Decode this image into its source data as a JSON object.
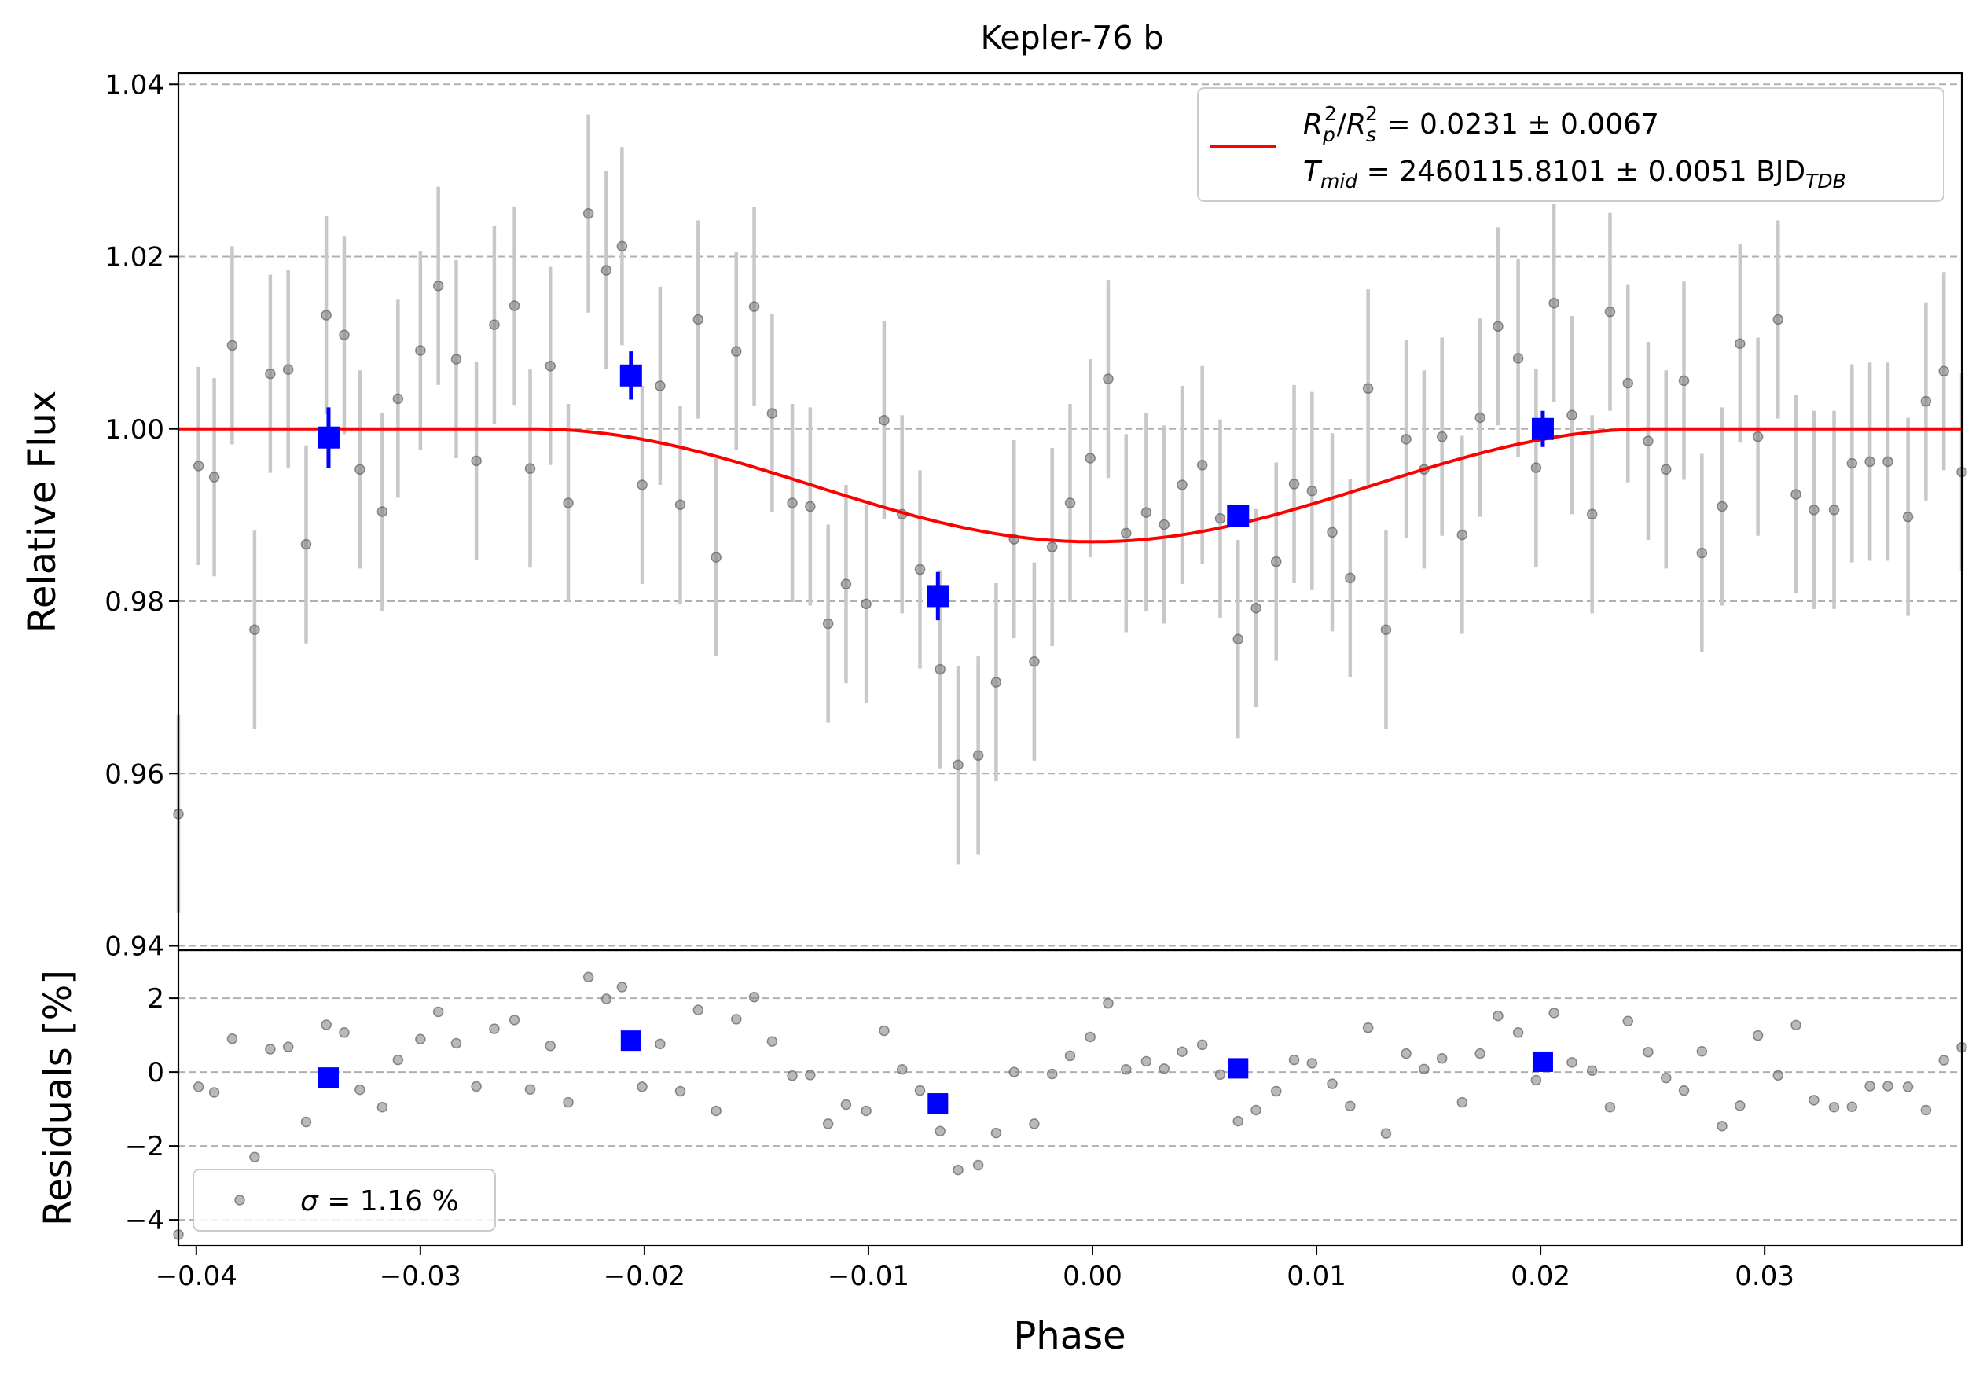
{
  "chart_data": [
    {
      "type": "scatter",
      "panel": "main",
      "title": "Kepler-76 b",
      "xlabel": "",
      "ylabel": "Relative Flux",
      "xlim": [
        -0.0408,
        0.0388
      ],
      "ylim": [
        0.9395,
        1.0413
      ],
      "yticks": [
        0.94,
        0.96,
        0.98,
        1.0,
        1.02,
        1.04
      ],
      "ytick_labels": [
        "0.94",
        "0.96",
        "0.98",
        "1.00",
        "1.02",
        "1.04"
      ],
      "grid": "horizontal dashed",
      "legend_position": "top-right",
      "legend": {
        "line1": {
          "sym1": "R",
          "sub1": "p",
          "sup1": "2",
          "sep": "/",
          "sym2": "R",
          "sub2": "s",
          "sup2": "2",
          "value": " = 0.0231 ± 0.0067"
        },
        "line2": {
          "sym": "T",
          "sub": "mid",
          "value": " = 2460115.8101 ± 0.0051 BJD",
          "unit_sub": "TDB"
        }
      },
      "colors": {
        "data": "#808080",
        "errorbar": "#c8c8c8",
        "binned": "#0000ff",
        "model": "#ff0000",
        "grid": "#b0b0b0"
      },
      "series": [
        {
          "role": "data",
          "x": [
            -0.0408,
            -0.0399,
            -0.0392,
            -0.0384,
            -0.0374,
            -0.0367,
            -0.0359,
            -0.0351,
            -0.0342,
            -0.0334,
            -0.0327,
            -0.0317,
            -0.031,
            -0.03,
            -0.0292,
            -0.0284,
            -0.0275,
            -0.0267,
            -0.0258,
            -0.0251,
            -0.0242,
            -0.0234,
            -0.0225,
            -0.0217,
            -0.021,
            -0.0201,
            -0.0193,
            -0.0184,
            -0.0176,
            -0.0168,
            -0.0159,
            -0.0151,
            -0.0143,
            -0.0134,
            -0.0126,
            -0.0118,
            -0.011,
            -0.0101,
            -0.0093,
            -0.0085,
            -0.0077,
            -0.0068,
            -0.006,
            -0.0051,
            -0.0043,
            -0.0035,
            -0.0026,
            -0.0018,
            -0.001,
            -0.0001,
            0.0007,
            0.0015,
            0.0024,
            0.0032,
            0.004,
            0.0049,
            0.0057,
            0.0065,
            0.0073,
            0.0082,
            0.009,
            0.0098,
            0.0107,
            0.0115,
            0.0123,
            0.0131,
            0.014,
            0.0148,
            0.0156,
            0.0165,
            0.0173,
            0.0181,
            0.019,
            0.0198,
            0.0206,
            0.0214,
            0.0223,
            0.0231,
            0.0239,
            0.0248,
            0.0256,
            0.0264,
            0.0272,
            0.0281,
            0.0289,
            0.0297,
            0.0306,
            0.0314,
            0.0322,
            0.0331,
            0.0339,
            0.0347,
            0.0355,
            0.0364,
            0.0372,
            0.038,
            0.0388
          ],
          "y": [
            0.9553,
            0.9957,
            0.9944,
            1.0097,
            0.9767,
            1.0064,
            1.0069,
            0.9866,
            1.0132,
            1.0109,
            0.9953,
            0.9904,
            1.0035,
            1.0091,
            1.0166,
            1.0081,
            0.9963,
            1.0121,
            1.0143,
            0.9954,
            1.0073,
            0.9914,
            1.025,
            1.0184,
            1.0212,
            0.9935,
            1.005,
            0.9912,
            1.0127,
            0.9851,
            1.009,
            1.0142,
            1.0018,
            0.9914,
            0.991,
            0.9774,
            0.982,
            0.9797,
            1.001,
            0.9901,
            0.9837,
            0.9721,
            0.961,
            0.9621,
            0.9706,
            0.9872,
            0.973,
            0.9863,
            0.9914,
            0.9966,
            1.0058,
            0.9879,
            0.9903,
            0.9889,
            0.9935,
            0.9958,
            0.9896,
            0.9756,
            0.9792,
            0.9846,
            0.9936,
            0.9928,
            0.988,
            0.9827,
            1.0047,
            0.9767,
            0.9988,
            0.9953,
            0.9991,
            0.9877,
            1.0013,
            1.0119,
            1.0082,
            0.9955,
            1.0146,
            1.0016,
            0.9901,
            1.0136,
            1.0053,
            0.9986,
            0.9953,
            1.0056,
            0.9856,
            0.991,
            1.0099,
            0.9991,
            1.0127,
            0.9924,
            0.9906,
            0.9906,
            0.996,
            0.9962,
            0.9962,
            0.9898,
            1.0032,
            1.0067,
            0.995
          ],
          "yerr": 0.0115,
          "residual": [
            -4.4,
            -0.4,
            -0.55,
            0.9,
            -2.3,
            0.62,
            0.68,
            -1.35,
            1.28,
            1.07,
            -0.48,
            -0.95,
            0.33,
            0.89,
            1.63,
            0.78,
            -0.39,
            1.17,
            1.41,
            -0.47,
            0.71,
            -0.82,
            2.57,
            1.98,
            2.3,
            -0.4,
            0.76,
            -0.52,
            1.68,
            -1.05,
            1.43,
            2.03,
            0.83,
            -0.1,
            -0.08,
            -1.4,
            -0.88,
            -1.05,
            1.12,
            0.07,
            -0.5,
            -1.6,
            -2.65,
            -2.52,
            -1.65,
            0.0,
            -1.4,
            -0.05,
            0.44,
            0.95,
            1.86,
            0.07,
            0.29,
            0.09,
            0.55,
            0.74,
            -0.07,
            -1.33,
            -1.03,
            -0.52,
            0.33,
            0.24,
            -0.32,
            -0.92,
            1.2,
            -1.66,
            0.5,
            0.08,
            0.37,
            -0.82,
            0.5,
            1.52,
            1.07,
            -0.22,
            1.6,
            0.26,
            0.04,
            -0.95,
            1.38,
            0.54,
            -0.16,
            -0.5,
            0.56,
            -1.46,
            -0.91,
            0.99,
            -0.09,
            1.27,
            -0.76,
            -0.95,
            -0.94,
            -0.38,
            -0.38,
            -0.4,
            -1.03,
            0.32,
            0.67
          ]
        },
        {
          "role": "binned",
          "x": [
            -0.0341,
            -0.0206,
            -0.0069,
            0.0065,
            0.0201
          ],
          "y": [
            0.999,
            1.0062,
            0.9806,
            0.9899,
            1.0
          ],
          "yerr": [
            0.0035,
            0.0028,
            0.0028,
            0.0012,
            0.0021
          ],
          "residual": [
            -0.15,
            0.85,
            -0.85,
            0.1,
            0.28
          ]
        },
        {
          "role": "model",
          "depth": 0.0131,
          "t14": 0.05
        }
      ]
    },
    {
      "type": "scatter",
      "panel": "residuals",
      "xlabel": "Phase",
      "ylabel": "Residuals [%]",
      "xlim": [
        -0.0408,
        0.0388
      ],
      "ylim": [
        -4.7,
        3.3
      ],
      "xticks": [
        -0.04,
        -0.03,
        -0.02,
        -0.01,
        0.0,
        0.01,
        0.02,
        0.03
      ],
      "xtick_labels": [
        "−0.04",
        "−0.03",
        "−0.02",
        "−0.01",
        "0.00",
        "0.01",
        "0.02",
        "0.03"
      ],
      "yticks": [
        -4,
        -2,
        0,
        2
      ],
      "ytick_labels": [
        "−4",
        "−2",
        "0",
        "2"
      ],
      "grid": "horizontal dashed",
      "legend_position": "bottom-left",
      "legend": {
        "sym": "σ",
        "value": " = 1.16 %"
      }
    }
  ]
}
